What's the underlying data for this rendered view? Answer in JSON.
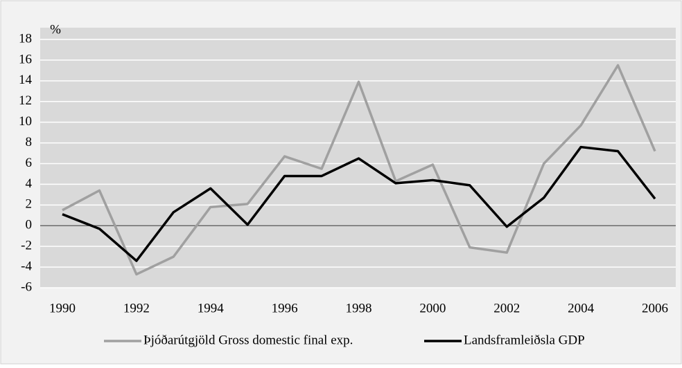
{
  "chart_data": {
    "type": "line",
    "y_label": "%",
    "x": [
      1990,
      1991,
      1992,
      1993,
      1994,
      1995,
      1996,
      1997,
      1998,
      1999,
      2000,
      2001,
      2002,
      2003,
      2004,
      2005,
      2006
    ],
    "xlim": [
      1990,
      2006
    ],
    "xticks": [
      1990,
      1992,
      1994,
      1996,
      1998,
      2000,
      2002,
      2004,
      2006
    ],
    "ylim": [
      -6,
      18
    ],
    "yticks": [
      -6,
      -4,
      -2,
      0,
      2,
      4,
      6,
      8,
      10,
      12,
      14,
      16,
      18
    ],
    "grid": true,
    "legend": "bottom",
    "series": [
      {
        "name": "Þjóðarútgjöld Gross domestic final exp.",
        "color": "#a0a0a0",
        "values": [
          1.5,
          3.4,
          -4.7,
          -3.0,
          1.8,
          2.1,
          6.7,
          5.5,
          13.9,
          4.3,
          5.9,
          -2.1,
          -2.6,
          6.0,
          9.7,
          15.5,
          7.2
        ]
      },
      {
        "name": "Landsframleiðsla GDP",
        "color": "#000000",
        "values": [
          1.1,
          -0.3,
          -3.4,
          1.3,
          3.6,
          0.1,
          4.8,
          4.8,
          6.5,
          4.1,
          4.4,
          3.9,
          -0.1,
          2.7,
          7.6,
          7.2,
          2.6
        ]
      }
    ]
  }
}
